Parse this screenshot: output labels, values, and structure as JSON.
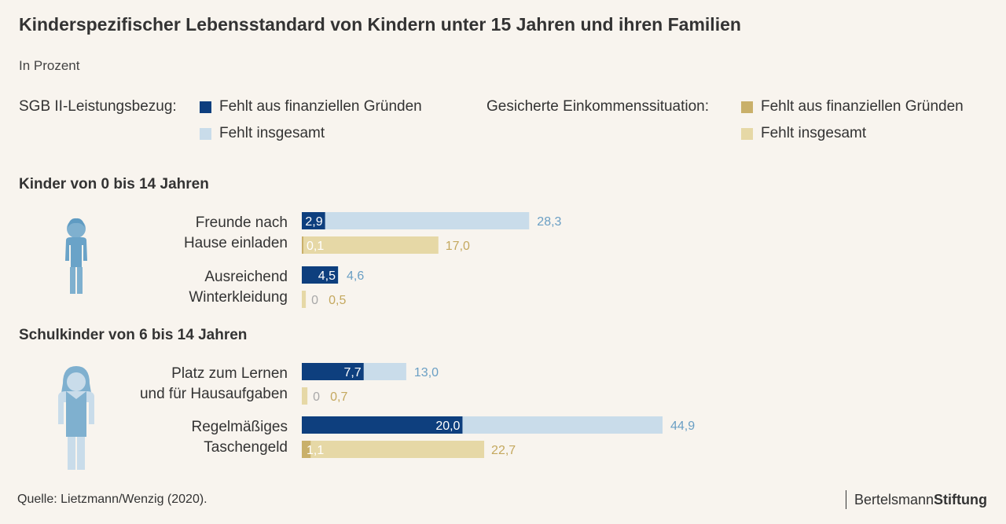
{
  "header": {
    "title": "Kinderspezifischer Lebensstandard von Kindern unter 15 Jahren und ihren Familien",
    "subtitle": "In Prozent"
  },
  "legend": {
    "group1_label": "SGB II-Leistungsbezug:",
    "group1_items": [
      "Fehlt aus finanziellen Gründen",
      "Fehlt insgesamt"
    ],
    "group2_label": "Gesicherte Einkommenssituation:",
    "group2_items": [
      "Fehlt aus finanziellen Gründen",
      "Fehlt insgesamt"
    ]
  },
  "colors": {
    "sgb_finanziell": "#0e3f7e",
    "sgb_insgesamt": "#c9dcea",
    "gesichert_finanziell": "#c9b06a",
    "gesichert_insgesamt": "#e6d8a6",
    "sgb_label": "#6a9fc4",
    "gesichert_label": "#c4a85e",
    "zero_label": "#a8a8a8"
  },
  "chart_data": {
    "type": "bar",
    "orientation": "horizontal",
    "xlim": [
      0,
      44.9
    ],
    "sections": [
      {
        "title": "Kinder von 0 bis 14 Jahren",
        "categories": [
          {
            "label": [
              "Freunde nach",
              "Hause einladen"
            ],
            "sgb": {
              "finanziell": "2,9",
              "insgesamt": "28,3",
              "finanziell_value": 2.9,
              "insgesamt_value": 28.3
            },
            "gesichert": {
              "finanziell": "0,1",
              "insgesamt": "17,0",
              "finanziell_value": 0.1,
              "insgesamt_value": 17.0
            }
          },
          {
            "label": [
              "Ausreichend",
              "Winterkleidung"
            ],
            "sgb": {
              "finanziell": "4,5",
              "insgesamt": "4,6",
              "finanziell_value": 4.5,
              "insgesamt_value": 4.6
            },
            "gesichert": {
              "finanziell": "0",
              "insgesamt": "0,5",
              "finanziell_value": 0,
              "insgesamt_value": 0.5
            }
          }
        ]
      },
      {
        "title": "Schulkinder von 6 bis 14 Jahren",
        "categories": [
          {
            "label": [
              "Platz zum Lernen",
              "und für Hausaufgaben"
            ],
            "sgb": {
              "finanziell": "7,7",
              "insgesamt": "13,0",
              "finanziell_value": 7.7,
              "insgesamt_value": 13.0
            },
            "gesichert": {
              "finanziell": "0",
              "insgesamt": "0,7",
              "finanziell_value": 0,
              "insgesamt_value": 0.7
            }
          },
          {
            "label": [
              "Regelmäßiges",
              "Taschengeld"
            ],
            "sgb": {
              "finanziell": "20,0",
              "insgesamt": "44,9",
              "finanziell_value": 20.0,
              "insgesamt_value": 44.9
            },
            "gesichert": {
              "finanziell": "1,1",
              "insgesamt": "22,7",
              "finanziell_value": 1.1,
              "insgesamt_value": 22.7
            }
          }
        ]
      }
    ]
  },
  "footer": {
    "source": "Quelle: Lietzmann/Wenzig (2020).",
    "brand_regular": "Bertelsmann",
    "brand_bold": "Stiftung"
  }
}
